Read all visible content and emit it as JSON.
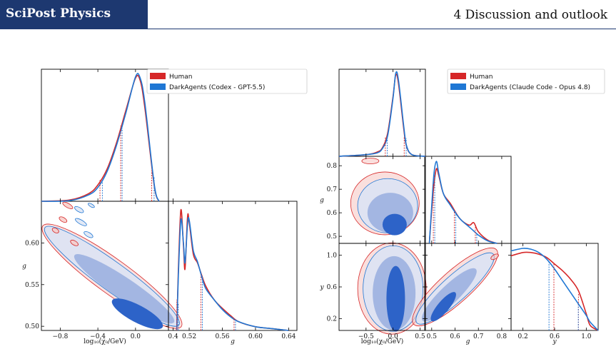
{
  "header": {
    "brand": "SciPost Physics",
    "section": "4   Discussion and outlook"
  },
  "colors": {
    "brand_bar": "#1d3870",
    "human": "#d62728",
    "agent": "#1f77d4",
    "fill_light_blue": "#dbe3f4",
    "fill_mid_blue": "#9fb3e0",
    "fill_dark_blue": "#2d63c8",
    "fill_light_red": "#f6c9c6"
  },
  "chart_data": [
    {
      "type": "corner",
      "panel": "left",
      "parameters": [
        "log10(chi0/GeV)",
        "g"
      ],
      "xlabels": [
        "log₁₀(χ₀/GeV)",
        "g"
      ],
      "ylabels": [
        "g"
      ],
      "legend": [
        "Human",
        "DarkAgents (Codex - GPT-5.5)"
      ],
      "legend_placement": "top-right",
      "ticks": {
        "log10chi0": [
          -0.8,
          -0.4,
          0.0,
          0.4
        ],
        "g_x": [
          0.52,
          0.56,
          0.6,
          0.64
        ],
        "g_y": [
          0.5,
          0.55,
          0.6
        ]
      },
      "tick_labels": {
        "log10chi0": [
          "−0.8",
          "−0.4",
          "0.0",
          "0.4"
        ],
        "g_x": [
          "0.52",
          "0.56",
          "0.60",
          "0.64"
        ],
        "g_y": [
          "0.50",
          "0.55",
          "0.60"
        ]
      },
      "ranges": {
        "log10chi0": [
          -1.0,
          0.35
        ],
        "g": [
          0.495,
          0.65
        ]
      },
      "marginal_log10chi0": {
        "x": [
          -1.0,
          -0.7,
          -0.5,
          -0.4,
          -0.3,
          -0.2,
          -0.1,
          0.0,
          0.05,
          0.1,
          0.2,
          0.25
        ],
        "Human": [
          0.0,
          0.01,
          0.06,
          0.13,
          0.26,
          0.47,
          0.73,
          0.98,
          0.96,
          0.74,
          0.12,
          0.0
        ],
        "DarkAgents": [
          0.0,
          0.005,
          0.05,
          0.11,
          0.24,
          0.45,
          0.71,
          0.99,
          0.98,
          0.78,
          0.13,
          0.0
        ],
        "quantiles_human": [
          -0.37,
          -0.15,
          0.18
        ],
        "quantiles_agent": [
          -0.36,
          -0.15,
          0.19
        ]
      },
      "marginal_g": {
        "x": [
          0.505,
          0.507,
          0.51,
          0.513,
          0.515,
          0.518,
          0.52,
          0.525,
          0.53,
          0.535,
          0.54,
          0.55,
          0.56,
          0.57,
          0.58,
          0.6,
          0.62,
          0.64
        ],
        "Human": [
          0.0,
          0.5,
          0.98,
          0.7,
          0.5,
          0.92,
          0.88,
          0.62,
          0.55,
          0.45,
          0.36,
          0.25,
          0.18,
          0.12,
          0.07,
          0.03,
          0.015,
          0.0
        ],
        "DarkAgents": [
          0.0,
          0.45,
          0.9,
          0.72,
          0.55,
          0.86,
          0.9,
          0.65,
          0.56,
          0.44,
          0.34,
          0.25,
          0.17,
          0.11,
          0.07,
          0.03,
          0.015,
          0.0
        ],
        "quantiles": [
          0.506,
          0.535,
          0.575
        ]
      }
    },
    {
      "type": "corner",
      "panel": "right",
      "parameters": [
        "log10(chi0/GeV)",
        "g",
        "y"
      ],
      "xlabels": [
        "log₁₀(χ₀/GeV)",
        "g",
        "y"
      ],
      "ylabels": [
        "g",
        "y"
      ],
      "legend": [
        "Human",
        "DarkAgents (Claude Code - Opus 4.8)"
      ],
      "legend_placement": "top-right",
      "ticks": {
        "log10chi0": [
          -0.5,
          0.0,
          0.5
        ],
        "g": [
          0.5,
          0.6,
          0.7,
          0.8
        ],
        "y": [
          0.2,
          0.6,
          1.0
        ]
      },
      "tick_labels": {
        "log10chi0": [
          "−0.5",
          "0.0",
          "0.5"
        ],
        "g": [
          "0.5",
          "0.6",
          "0.7",
          "0.8"
        ],
        "y": [
          "0.2",
          "0.6",
          "1.0"
        ]
      },
      "ranges": {
        "log10chi0": [
          -1.0,
          0.6
        ],
        "g": [
          0.47,
          0.84
        ],
        "y": [
          0.05,
          1.15
        ]
      },
      "marginal_log10chi0": {
        "x": [
          -1.0,
          -0.5,
          -0.3,
          -0.2,
          -0.1,
          0.0,
          0.05,
          0.1,
          0.2,
          0.25,
          0.35,
          0.6
        ],
        "Human": [
          0.0,
          0.02,
          0.05,
          0.1,
          0.28,
          0.72,
          0.98,
          0.88,
          0.32,
          0.12,
          0.02,
          0.0
        ],
        "DarkAgents": [
          0.0,
          0.02,
          0.04,
          0.09,
          0.25,
          0.7,
          1.0,
          0.92,
          0.35,
          0.13,
          0.02,
          0.0
        ],
        "quantiles_human": [
          -0.13,
          0.22
        ],
        "quantiles_agent": [
          -0.12,
          0.23
        ]
      },
      "marginal_g": {
        "x": [
          0.49,
          0.5,
          0.51,
          0.52,
          0.53,
          0.55,
          0.58,
          0.62,
          0.66,
          0.68,
          0.7,
          0.74,
          0.78
        ],
        "Human": [
          0.0,
          0.4,
          0.72,
          0.9,
          0.82,
          0.6,
          0.48,
          0.3,
          0.22,
          0.25,
          0.14,
          0.04,
          0.0
        ],
        "DarkAgents": [
          0.0,
          0.45,
          0.85,
          0.99,
          0.85,
          0.6,
          0.46,
          0.3,
          0.2,
          0.15,
          0.1,
          0.03,
          0.0
        ],
        "quantiles": [
          0.51,
          0.6,
          0.69
        ]
      },
      "marginal_y": {
        "x": [
          0.05,
          0.2,
          0.3,
          0.4,
          0.5,
          0.6,
          0.7,
          0.8,
          0.9,
          1.0,
          1.05,
          1.15
        ],
        "Human": [
          0.9,
          0.94,
          0.94,
          0.92,
          0.88,
          0.8,
          0.72,
          0.62,
          0.48,
          0.2,
          0.06,
          0.0
        ],
        "DarkAgents": [
          0.96,
          0.99,
          0.98,
          0.94,
          0.86,
          0.74,
          0.6,
          0.46,
          0.32,
          0.18,
          0.1,
          0.0
        ],
        "quantiles_human": [
          0.6,
          0.91
        ],
        "quantiles_agent": [
          0.52,
          0.89
        ]
      }
    }
  ]
}
